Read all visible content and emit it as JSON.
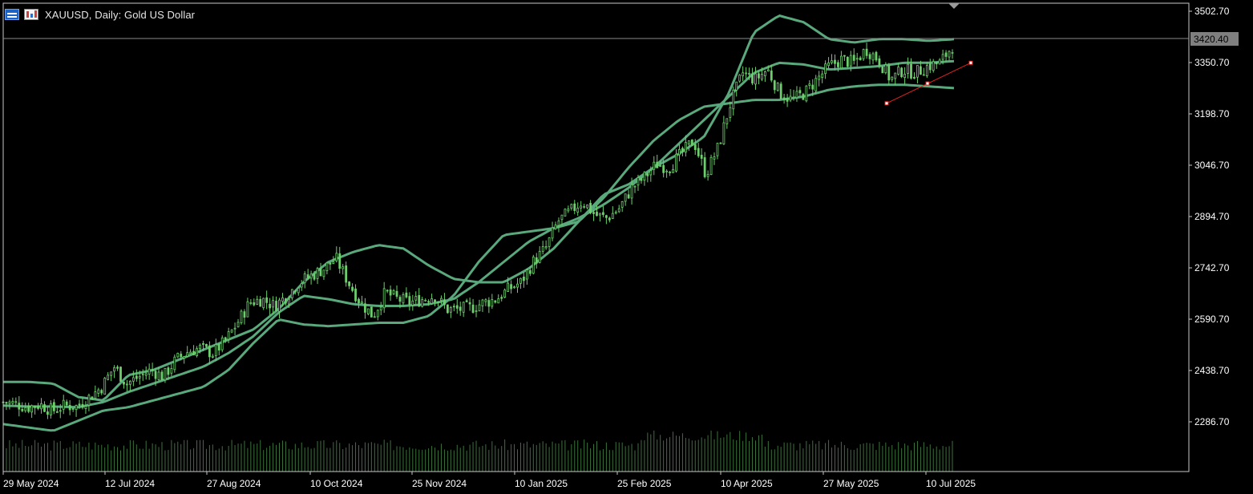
{
  "header": {
    "title": "XAUUSD, Daily:  Gold US Dollar",
    "icons": [
      "chart-window-icon",
      "bar-chart-icon"
    ]
  },
  "chart_data": {
    "type": "candlestick",
    "symbol": "XAUUSD",
    "timeframe": "Daily",
    "description": "Gold US Dollar",
    "current_price": "3420.40",
    "y_ticks": [
      "3502.70",
      "3350.70",
      "3198.70",
      "3046.70",
      "2894.70",
      "2742.70",
      "2590.70",
      "2438.70",
      "2286.70"
    ],
    "y_tick_values": [
      3502.7,
      3350.7,
      3198.7,
      3046.7,
      2894.7,
      2742.7,
      2590.7,
      2438.7,
      2286.7
    ],
    "ylim": [
      2200,
      3520
    ],
    "x_ticks": [
      "29 May 2024",
      "12 Jul 2024",
      "27 Aug 2024",
      "10 Oct 2024",
      "25 Nov 2024",
      "10 Jan 2025",
      "25 Feb 2025",
      "10 Apr 2025",
      "27 May 2025",
      "10 Jul 2025"
    ],
    "bar_count": 300,
    "close_series_weekly": [
      2345,
      2340,
      2330,
      2338,
      2320,
      2335,
      2332,
      2360,
      2390,
      2450,
      2400,
      2420,
      2440,
      2420,
      2470,
      2495,
      2505,
      2490,
      2525,
      2580,
      2640,
      2650,
      2630,
      2660,
      2700,
      2720,
      2740,
      2770,
      2700,
      2640,
      2600,
      2670,
      2650,
      2640,
      2650,
      2660,
      2620,
      2620,
      2625,
      2640,
      2650,
      2680,
      2700,
      2760,
      2800,
      2880,
      2910,
      2940,
      2900,
      2890,
      2920,
      2980,
      3010,
      3050,
      3040,
      3080,
      3120,
      3020,
      3100,
      3230,
      3320,
      3300,
      3330,
      3260,
      3240,
      3260,
      3300,
      3340,
      3360,
      3350,
      3390,
      3360,
      3300,
      3330,
      3320,
      3340,
      3350,
      3400
    ],
    "bollinger_upper": [
      2405,
      2405,
      2400,
      2360,
      2350,
      2425,
      2440,
      2470,
      2500,
      2530,
      2560,
      2620,
      2700,
      2760,
      2790,
      2810,
      2800,
      2750,
      2710,
      2700,
      2700,
      2740,
      2800,
      2880,
      2960,
      2990,
      3040,
      3080,
      3130,
      3260,
      3440,
      3490,
      3470,
      3420,
      3410,
      3420,
      3420,
      3415,
      3420
    ],
    "bollinger_middle": [
      2335,
      2332,
      2332,
      2330,
      2345,
      2375,
      2400,
      2425,
      2450,
      2490,
      2540,
      2610,
      2660,
      2650,
      2635,
      2630,
      2630,
      2635,
      2650,
      2700,
      2760,
      2820,
      2860,
      2890,
      2930,
      2980,
      3040,
      3110,
      3180,
      3250,
      3320,
      3350,
      3345,
      3330,
      3335,
      3340,
      3350,
      3350,
      3355
    ],
    "bollinger_lower": [
      2280,
      2270,
      2260,
      2290,
      2320,
      2330,
      2350,
      2370,
      2390,
      2440,
      2520,
      2590,
      2575,
      2570,
      2575,
      2580,
      2580,
      2600,
      2660,
      2760,
      2840,
      2850,
      2860,
      2880,
      2950,
      3040,
      3120,
      3180,
      3220,
      3230,
      3240,
      3240,
      3250,
      3270,
      3280,
      3285,
      3285,
      3280,
      3275
    ],
    "trendline": {
      "from_price": 3230,
      "to_price": 3350
    },
    "volume_relative": "histogram of daily tick volume at bottom of chart",
    "colors": {
      "background": "#000000",
      "candle": "#6ccf6c",
      "bands": "#5aa97d",
      "trendline": "#e02222",
      "axis": "#c8c8c8",
      "price_line": "#8a8a8a",
      "price_label_bg": "#7f7f7f"
    }
  }
}
